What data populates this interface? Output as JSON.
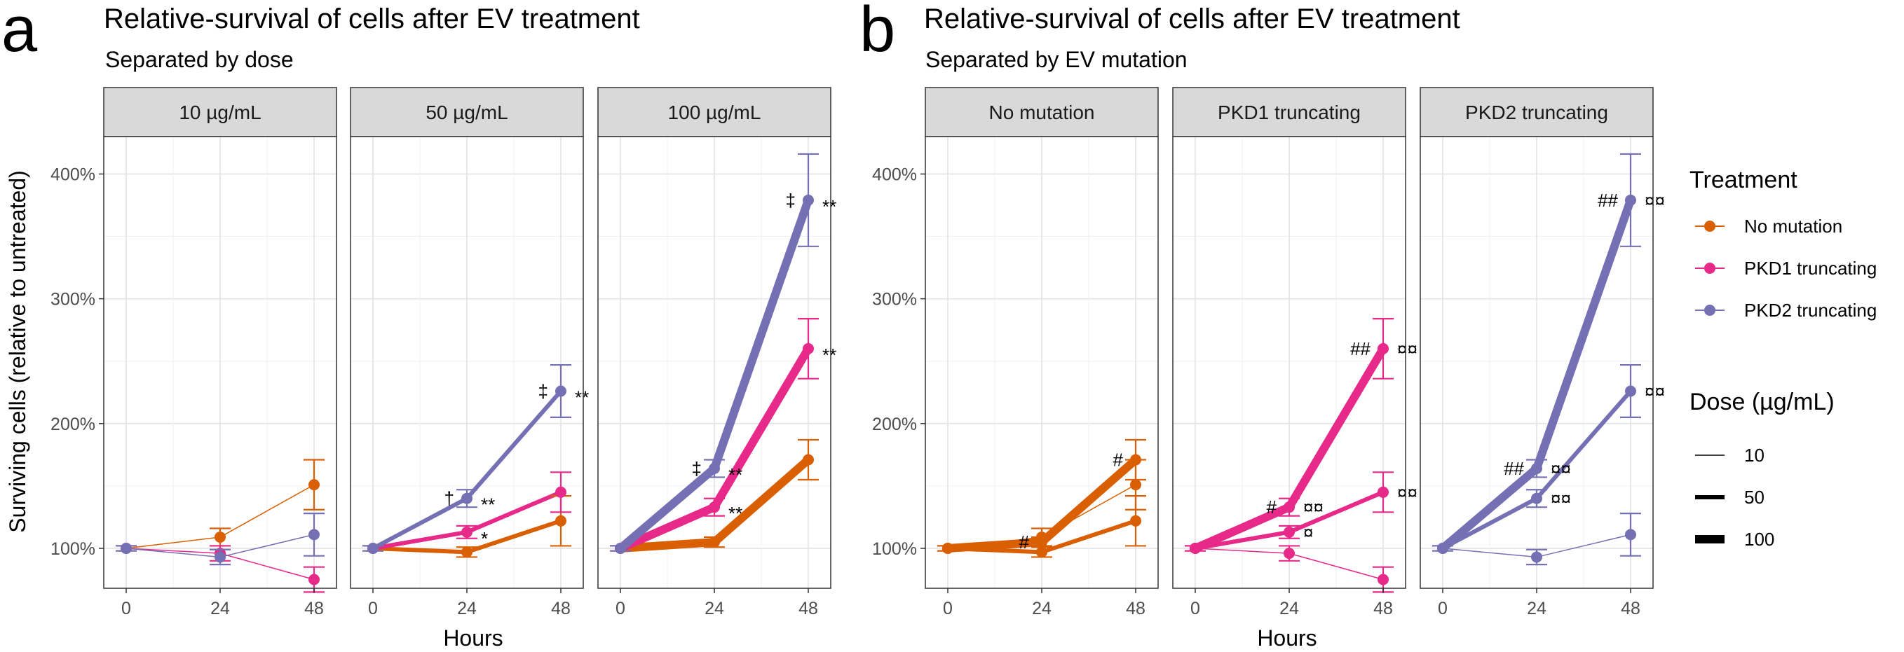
{
  "panel_letters": [
    "a",
    "b"
  ],
  "ylabel": "Surviving cells (relative to untreated)",
  "xlabel": "Hours",
  "ytick_labels": [
    "100%",
    "200%",
    "300%",
    "400%"
  ],
  "xtick_labels": [
    "0",
    "24",
    "48"
  ],
  "legend": {
    "treatment_title": "Treatment",
    "treatment_items": [
      {
        "label": "No mutation",
        "color": "#d95f02"
      },
      {
        "label": "PKD1 truncating",
        "color": "#e7298a"
      },
      {
        "label": "PKD2 truncating",
        "color": "#7570b3"
      }
    ],
    "dose_title": "Dose (µg/mL)",
    "dose_items": [
      {
        "label": "10",
        "dose": 10
      },
      {
        "label": "50",
        "dose": 50
      },
      {
        "label": "100",
        "dose": 100
      }
    ]
  },
  "chart_data": [
    {
      "type": "line",
      "panel": "a",
      "title": "Relative-survival of cells after EV treatment",
      "subtitle": "Separated by dose",
      "facet_by": "dose",
      "x": [
        0,
        24,
        48
      ],
      "ylim": [
        0.68,
        4.3
      ],
      "grid": true,
      "legend_position": "right",
      "facets": [
        {
          "label": "10 µg/mL",
          "series": [
            {
              "name": "No mutation",
              "dose": 10,
              "values": [
                1.0,
                1.09,
                1.51
              ],
              "error": [
                0.02,
                0.07,
                0.2
              ]
            },
            {
              "name": "PKD1 truncating",
              "dose": 10,
              "values": [
                1.0,
                0.96,
                0.75
              ],
              "error": [
                0.02,
                0.06,
                0.1
              ]
            },
            {
              "name": "PKD2 truncating",
              "dose": 10,
              "values": [
                1.0,
                0.93,
                1.11
              ],
              "error": [
                0.02,
                0.06,
                0.17
              ]
            }
          ],
          "annotations": []
        },
        {
          "label": "50 µg/mL",
          "series": [
            {
              "name": "No mutation",
              "dose": 50,
              "values": [
                1.0,
                0.97,
                1.22
              ],
              "error": [
                0.02,
                0.04,
                0.2
              ]
            },
            {
              "name": "PKD1 truncating",
              "dose": 50,
              "values": [
                1.0,
                1.13,
                1.45
              ],
              "error": [
                0.02,
                0.05,
                0.16
              ]
            },
            {
              "name": "PKD2 truncating",
              "dose": 50,
              "values": [
                1.0,
                1.4,
                2.26
              ],
              "error": [
                0.02,
                0.07,
                0.21
              ]
            }
          ],
          "annotations": [
            {
              "x": 24,
              "y": 1.4,
              "text": "†",
              "side": "left"
            },
            {
              "x": 24,
              "y": 1.4,
              "text": "**",
              "side": "right"
            },
            {
              "x": 24,
              "y": 1.13,
              "text": "*",
              "side": "right"
            },
            {
              "x": 48,
              "y": 2.26,
              "text": "‡",
              "side": "left"
            },
            {
              "x": 48,
              "y": 2.26,
              "text": "**",
              "side": "right"
            }
          ]
        },
        {
          "label": "100 µg/mL",
          "series": [
            {
              "name": "No mutation",
              "dose": 100,
              "values": [
                1.0,
                1.05,
                1.71
              ],
              "error": [
                0.02,
                0.04,
                0.16
              ]
            },
            {
              "name": "PKD1 truncating",
              "dose": 100,
              "values": [
                1.0,
                1.33,
                2.6
              ],
              "error": [
                0.02,
                0.07,
                0.24
              ]
            },
            {
              "name": "PKD2 truncating",
              "dose": 100,
              "values": [
                1.0,
                1.64,
                3.79
              ],
              "error": [
                0.02,
                0.07,
                0.37
              ]
            }
          ],
          "annotations": [
            {
              "x": 24,
              "y": 1.64,
              "text": "‡",
              "side": "left"
            },
            {
              "x": 24,
              "y": 1.64,
              "text": "**",
              "side": "right"
            },
            {
              "x": 24,
              "y": 1.33,
              "text": "**",
              "side": "right"
            },
            {
              "x": 48,
              "y": 3.79,
              "text": "‡",
              "side": "left"
            },
            {
              "x": 48,
              "y": 3.79,
              "text": "**",
              "side": "right"
            },
            {
              "x": 48,
              "y": 2.6,
              "text": "**",
              "side": "right"
            }
          ]
        }
      ]
    },
    {
      "type": "line",
      "panel": "b",
      "title": "Relative-survival of cells after EV treatment",
      "subtitle": "Separated by EV mutation",
      "facet_by": "treatment",
      "x": [
        0,
        24,
        48
      ],
      "ylim": [
        0.68,
        4.3
      ],
      "grid": true,
      "facets": [
        {
          "label": "No mutation",
          "series": [
            {
              "name": "No mutation",
              "dose": 10,
              "values": [
                1.0,
                1.09,
                1.51
              ],
              "error": [
                0.02,
                0.07,
                0.2
              ]
            },
            {
              "name": "No mutation",
              "dose": 50,
              "values": [
                1.0,
                0.97,
                1.22
              ],
              "error": [
                0.02,
                0.04,
                0.2
              ]
            },
            {
              "name": "No mutation",
              "dose": 100,
              "values": [
                1.0,
                1.05,
                1.71
              ],
              "error": [
                0.02,
                0.04,
                0.16
              ]
            }
          ],
          "annotations": [
            {
              "x": 24,
              "y": 1.05,
              "text": "#",
              "side": "left"
            },
            {
              "x": 48,
              "y": 1.71,
              "text": "#",
              "side": "left"
            }
          ]
        },
        {
          "label": "PKD1 truncating",
          "series": [
            {
              "name": "PKD1 truncating",
              "dose": 10,
              "values": [
                1.0,
                0.96,
                0.75
              ],
              "error": [
                0.02,
                0.06,
                0.1
              ]
            },
            {
              "name": "PKD1 truncating",
              "dose": 50,
              "values": [
                1.0,
                1.13,
                1.45
              ],
              "error": [
                0.02,
                0.05,
                0.16
              ]
            },
            {
              "name": "PKD1 truncating",
              "dose": 100,
              "values": [
                1.0,
                1.33,
                2.6
              ],
              "error": [
                0.02,
                0.07,
                0.24
              ]
            }
          ],
          "annotations": [
            {
              "x": 24,
              "y": 1.33,
              "text": "#",
              "side": "left"
            },
            {
              "x": 24,
              "y": 1.33,
              "text": "¤¤",
              "side": "right"
            },
            {
              "x": 24,
              "y": 1.13,
              "text": "¤",
              "side": "right"
            },
            {
              "x": 48,
              "y": 2.6,
              "text": "##",
              "side": "left"
            },
            {
              "x": 48,
              "y": 2.6,
              "text": "¤¤",
              "side": "right"
            },
            {
              "x": 48,
              "y": 1.45,
              "text": "¤¤",
              "side": "right"
            }
          ]
        },
        {
          "label": "PKD2 truncating",
          "series": [
            {
              "name": "PKD2 truncating",
              "dose": 10,
              "values": [
                1.0,
                0.93,
                1.11
              ],
              "error": [
                0.02,
                0.06,
                0.17
              ]
            },
            {
              "name": "PKD2 truncating",
              "dose": 50,
              "values": [
                1.0,
                1.4,
                2.26
              ],
              "error": [
                0.02,
                0.07,
                0.21
              ]
            },
            {
              "name": "PKD2 truncating",
              "dose": 100,
              "values": [
                1.0,
                1.64,
                3.79
              ],
              "error": [
                0.02,
                0.07,
                0.37
              ]
            }
          ],
          "annotations": [
            {
              "x": 24,
              "y": 1.64,
              "text": "##",
              "side": "left"
            },
            {
              "x": 24,
              "y": 1.64,
              "text": "¤¤",
              "side": "right"
            },
            {
              "x": 24,
              "y": 1.4,
              "text": "¤¤",
              "side": "right"
            },
            {
              "x": 48,
              "y": 3.79,
              "text": "##",
              "side": "left"
            },
            {
              "x": 48,
              "y": 3.79,
              "text": "¤¤",
              "side": "right"
            },
            {
              "x": 48,
              "y": 2.26,
              "text": "¤¤",
              "side": "right"
            }
          ]
        }
      ]
    }
  ]
}
